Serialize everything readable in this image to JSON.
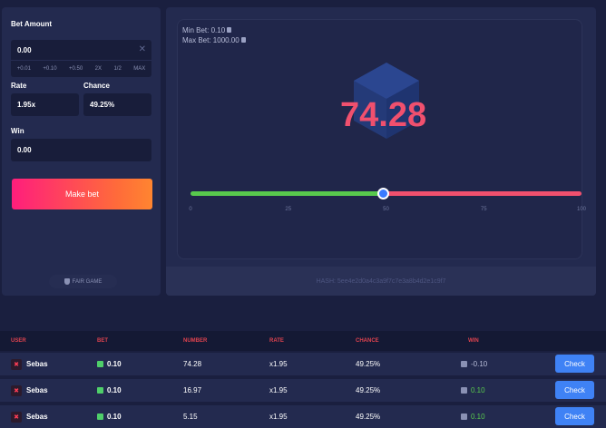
{
  "form": {
    "bet_amount_label": "Bet Amount",
    "bet_amount_value": "0.00",
    "quick_buttons": [
      "+0.01",
      "+0.10",
      "+0.50",
      "2X",
      "1/2",
      "MAX"
    ],
    "rate_label": "Rate",
    "rate_value": "1.95x",
    "chance_label": "Chance",
    "chance_value": "49.25%",
    "win_label": "Win",
    "win_value": "0.00",
    "make_bet_label": "Make bet",
    "fair_game_label": "FAIR GAME"
  },
  "game": {
    "min_bet": "Min Bet: 0.10",
    "max_bet": "Max Bet: 1000.00",
    "result": "74.28",
    "slider_percent": 49.25,
    "ticks": [
      "0",
      "25",
      "50",
      "75",
      "100"
    ],
    "hash_text": "HASH: 5ee4e2d0a4c3a9f7c7e3a8b4d2e1c9f7",
    "colors": {
      "win": "#58c94d",
      "lose": "#f0506e",
      "accent": "#3a7bff"
    }
  },
  "table": {
    "headers": {
      "user": "USER",
      "bet": "BET",
      "number": "NUMBER",
      "rate": "RATE",
      "chance": "CHANCE",
      "win": "WIN"
    },
    "check_label": "Check",
    "rows": [
      {
        "user": "Sebas",
        "bet": "0.10",
        "number": "74.28",
        "rate": "x1.95",
        "chance": "49.25%",
        "win": "-0.10"
      },
      {
        "user": "Sebas",
        "bet": "0.10",
        "number": "16.97",
        "rate": "x1.95",
        "chance": "49.25%",
        "win": "0.10"
      },
      {
        "user": "Sebas",
        "bet": "0.10",
        "number": "5.15",
        "rate": "x1.95",
        "chance": "49.25%",
        "win": "0.10"
      }
    ]
  }
}
